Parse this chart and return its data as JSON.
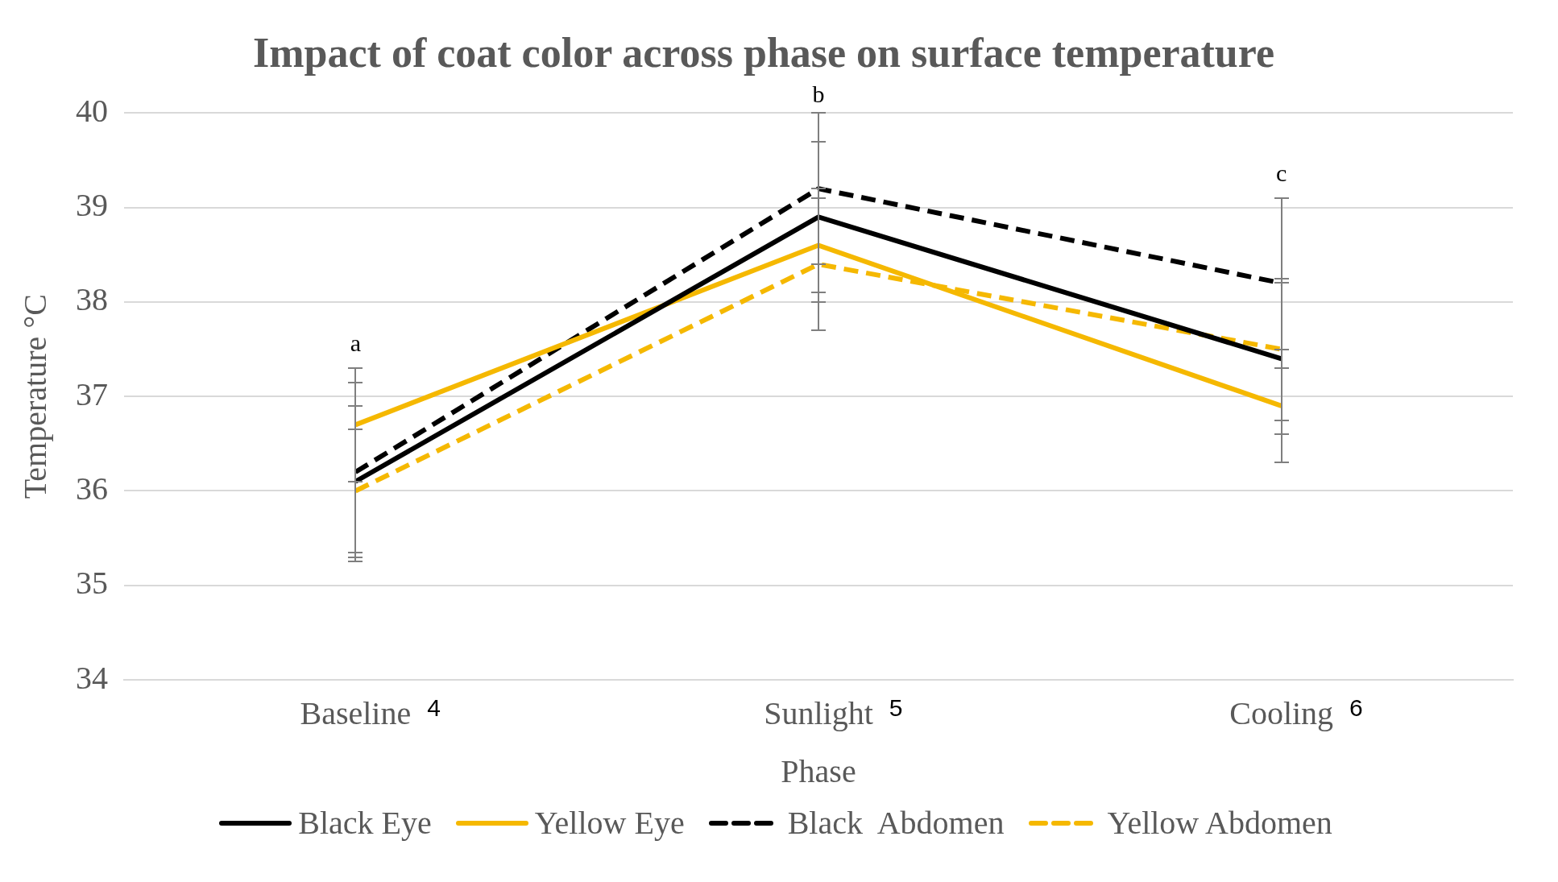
{
  "chart_data": {
    "type": "line",
    "title": "Impact of coat color across phase on surface temperature",
    "xlabel": "Phase",
    "ylabel": "Temperature °C",
    "categories": [
      "Baseline",
      "Sunlight",
      "Cooling"
    ],
    "series": [
      {
        "name": "Black Eye",
        "color": "#000000",
        "line_style": "solid",
        "values": [
          36.1,
          38.9,
          37.4
        ],
        "errors": [
          0.8,
          0.8,
          0.8
        ]
      },
      {
        "name": "Yellow Eye",
        "color": "#f5b800",
        "line_style": "solid",
        "values": [
          36.7,
          38.6,
          36.9
        ],
        "errors": [
          0.6,
          0.6,
          0.6
        ]
      },
      {
        "name": "Black  Abdomen",
        "color": "#000000",
        "line_style": "dashed",
        "values": [
          36.2,
          39.2,
          38.2
        ],
        "errors": [
          0.95,
          0.8,
          0.9
        ]
      },
      {
        "name": "Yellow Abdomen",
        "color": "#f5b800",
        "line_style": "dashed",
        "values": [
          36.0,
          38.4,
          37.5
        ],
        "errors": [
          0.65,
          0.7,
          0.75
        ]
      }
    ],
    "ylim": [
      34,
      40
    ],
    "yticks": [
      34,
      35,
      36,
      37,
      38,
      39,
      40
    ],
    "grid": "y",
    "legend": "bottom",
    "marker": "none",
    "annotations": [
      "a",
      "b",
      "c",
      "4",
      "5",
      "6"
    ]
  }
}
